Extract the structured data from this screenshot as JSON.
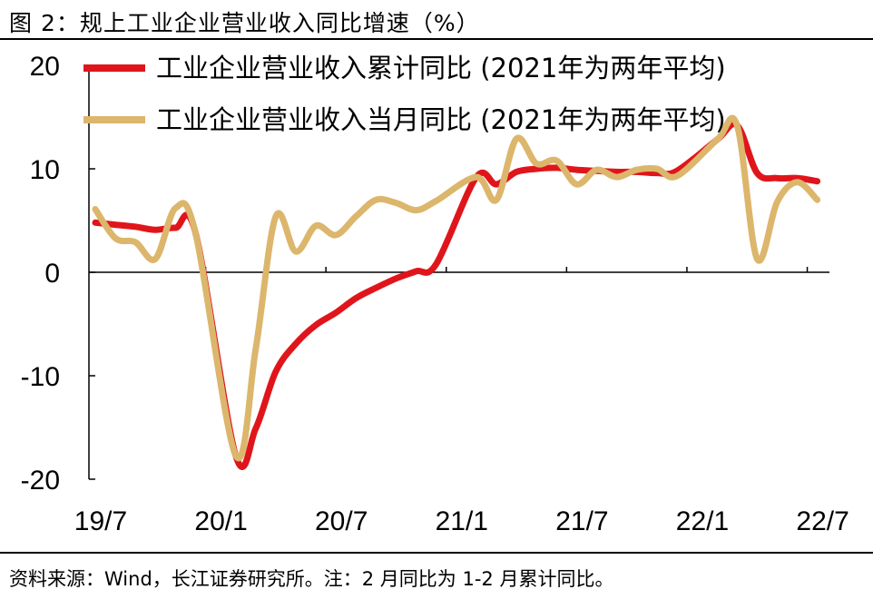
{
  "figure": {
    "title": "图 2：规上工业企业营业收入同比增速（%）",
    "source": "资料来源：Wind，长江证券研究所。注：2 月同比为 1-2 月累计同比。"
  },
  "colors": {
    "cumulative": "#e0151b",
    "monthly": "#dcb66c",
    "axis": "#000000"
  },
  "chart_data": {
    "type": "line",
    "x": [
      "19/7",
      "19/8",
      "19/9",
      "19/10",
      "19/11",
      "19/12",
      "20/1",
      "20/2",
      "20/3",
      "20/4",
      "20/5",
      "20/6",
      "20/7",
      "20/8",
      "20/9",
      "20/10",
      "20/11",
      "20/12",
      "21/1",
      "21/2",
      "21/3",
      "21/4",
      "21/5",
      "21/6",
      "21/7",
      "21/8",
      "21/9",
      "21/10",
      "21/11",
      "21/12",
      "22/1",
      "22/2",
      "22/3",
      "22/4",
      "22/5",
      "22/6",
      "22/7"
    ],
    "x_tick_labels": [
      "19/7",
      "20/1",
      "20/7",
      "21/1",
      "21/7",
      "22/1",
      "22/7"
    ],
    "y_ticks": [
      20,
      10,
      0,
      -10,
      -20
    ],
    "y_tick_labels": [
      "20",
      "10",
      "0",
      "-10",
      "-20"
    ],
    "ylim": [
      -20,
      20
    ],
    "legend_position": "top",
    "series": [
      {
        "name": "工业企业营业收入累计同比 (2021年为两年平均)",
        "key": "cumulative",
        "values": [
          4.8,
          4.6,
          4.4,
          4.1,
          4.3,
          3.8,
          null,
          -17.7,
          -15.1,
          -9.6,
          -6.9,
          -5.1,
          -3.9,
          -2.5,
          -1.5,
          -0.6,
          0.1,
          0.8,
          null,
          9.2,
          8.5,
          9.7,
          10.0,
          10.1,
          9.9,
          9.8,
          9.7,
          9.7,
          9.6,
          9.8,
          null,
          12.8,
          14.2,
          9.6,
          9.1,
          9.1,
          8.8
        ]
      },
      {
        "name": "工业企业营业收入当月同比 (2021年为两年平均)",
        "key": "monthly",
        "values": [
          6.1,
          3.3,
          2.9,
          1.3,
          6.2,
          3.8,
          null,
          -17.7,
          -7.4,
          5.4,
          2.0,
          4.5,
          3.6,
          5.4,
          7.0,
          6.7,
          6.0,
          6.9,
          null,
          9.2,
          7.0,
          12.9,
          10.5,
          10.8,
          8.5,
          9.9,
          9.2,
          9.9,
          10.0,
          9.3,
          null,
          12.8,
          14.2,
          1.3,
          6.8,
          8.7,
          7.0
        ]
      }
    ]
  }
}
